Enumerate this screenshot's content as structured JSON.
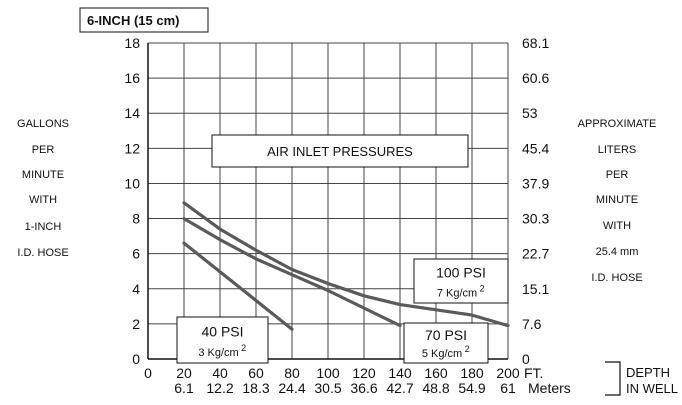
{
  "chart_data": {
    "type": "line",
    "title": "6-INCH (15 cm)",
    "annotation": "AIR INLET PRESSURES",
    "left_axis": {
      "label_lines": [
        "GALLONS",
        "PER",
        "MINUTE",
        "WITH",
        "1-INCH",
        "I.D. HOSE"
      ],
      "ticks": [
        0,
        2,
        4,
        6,
        8,
        10,
        12,
        14,
        16,
        18
      ],
      "ylim": [
        0,
        18
      ]
    },
    "right_axis": {
      "label_lines": [
        "APPROXIMATE",
        "LITERS",
        "PER",
        "MINUTE",
        "WITH",
        "25.4 mm",
        "I.D. HOSE"
      ],
      "ticks": [
        "0",
        "7.6",
        "15.1",
        "22.7",
        "30.3",
        "37.9",
        "45.4",
        "53",
        "60.6",
        "68.1"
      ]
    },
    "x_axis": {
      "xlim": [
        0,
        200
      ],
      "ft_ticks": [
        0,
        20,
        40,
        60,
        80,
        100,
        120,
        140,
        160,
        180,
        200
      ],
      "meter_ticks": [
        "6.1",
        "12.2",
        "18.3",
        "24.4",
        "30.5",
        "36.6",
        "42.7",
        "48.8",
        "54.9",
        "61"
      ],
      "unit_ft": "FT.",
      "unit_m": "Meters",
      "depth_label_lines": [
        "DEPTH",
        "IN WELL"
      ]
    },
    "grid": true,
    "series": [
      {
        "name": "40 PSI",
        "sub_label": "3 Kg/cm",
        "sup": "2",
        "x": [
          20,
          80
        ],
        "y": [
          6.6,
          1.7
        ]
      },
      {
        "name": "70 PSI",
        "sub_label": "5 Kg/cm",
        "sup": "2",
        "x": [
          20,
          40,
          60,
          80,
          100,
          120,
          140
        ],
        "y": [
          8.0,
          6.8,
          5.7,
          4.8,
          3.9,
          2.9,
          1.9
        ]
      },
      {
        "name": "100 PSI",
        "sub_label": "7 Kg/cm",
        "sup": "2",
        "x": [
          20,
          40,
          60,
          80,
          100,
          120,
          140,
          160,
          180,
          200
        ],
        "y": [
          8.9,
          7.4,
          6.2,
          5.1,
          4.3,
          3.6,
          3.1,
          2.8,
          2.5,
          1.9
        ]
      }
    ]
  }
}
